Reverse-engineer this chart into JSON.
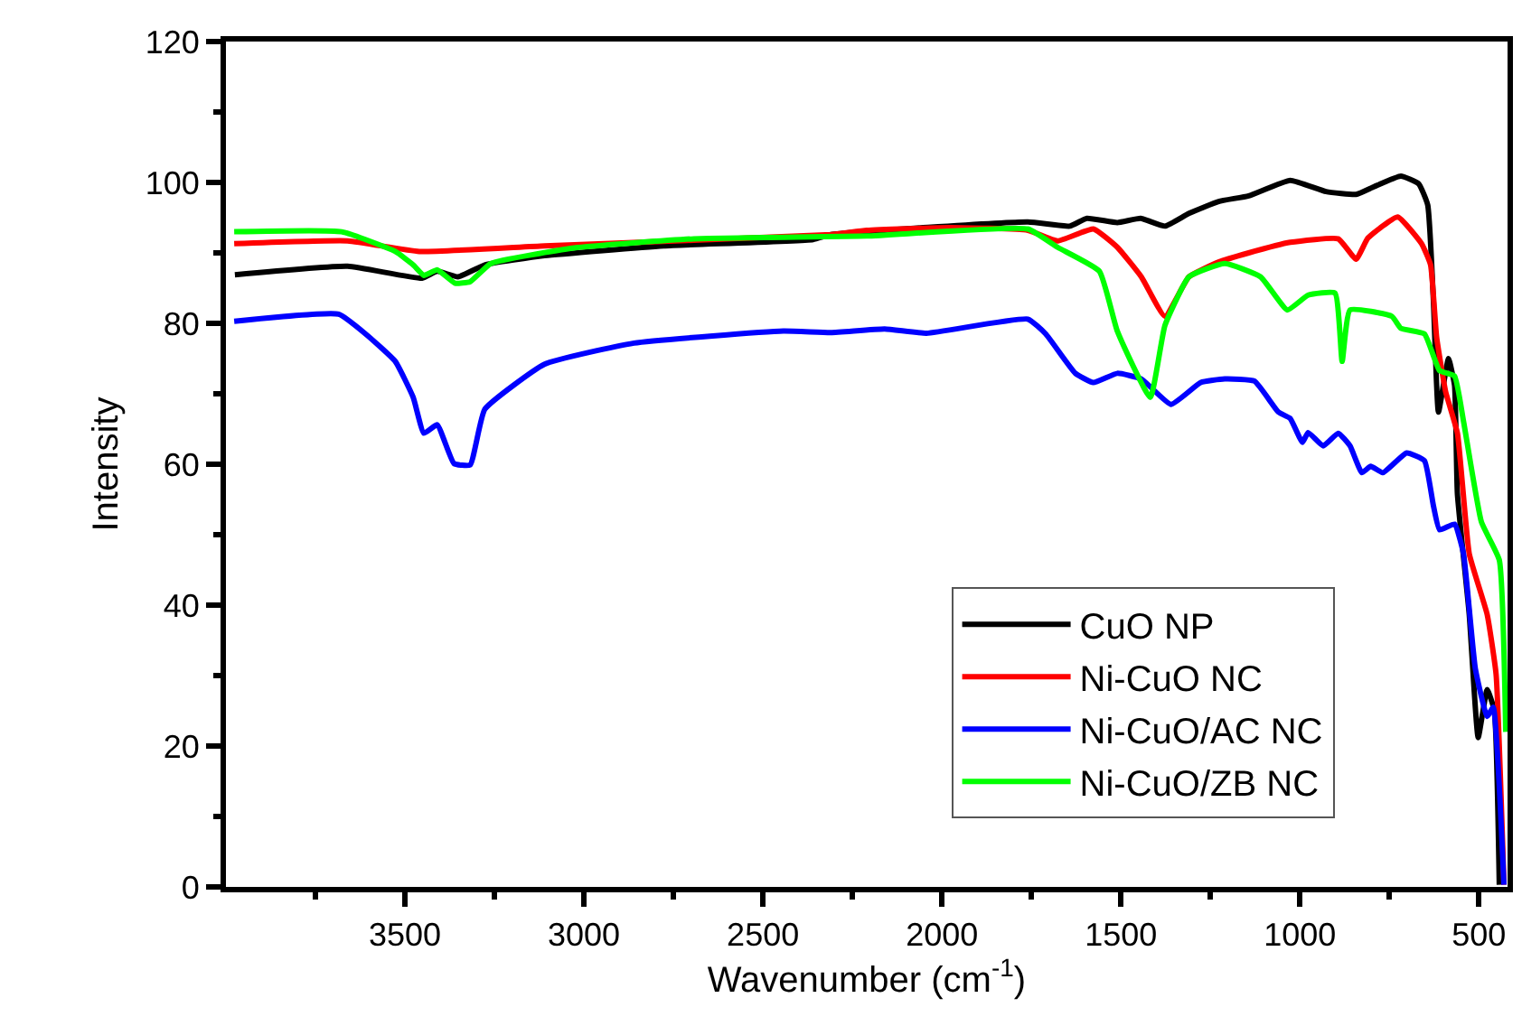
{
  "chart_data": {
    "type": "line",
    "xlabel": "Wavenumber (cm$^{-1}$)",
    "ylabel": "Intensity",
    "xlim": [
      4000,
      420
    ],
    "xticks": [
      3500,
      3000,
      2500,
      2000,
      1500,
      1000,
      500
    ],
    "ylim": [
      0,
      120
    ],
    "yticks": [
      0,
      20,
      40,
      60,
      80,
      100,
      120
    ],
    "legend": "bottom right",
    "marker": "none",
    "line_style": "solid",
    "series": [
      {
        "name": "CuO NP",
        "color": "#000000",
        "x": [
          3975,
          3660,
          3452,
          3410,
          3352,
          3277,
          3110,
          2777,
          2360,
          2310,
          1760,
          1643,
          1595,
          1510,
          1445,
          1377,
          1310,
          1227,
          1143,
          1027,
          927,
          843,
          793,
          718,
          668,
          643,
          627,
          613,
          585,
          568,
          560,
          527,
          502,
          477,
          457,
          443
        ],
        "values": [
          86.9,
          88.1,
          86.4,
          87.4,
          86.6,
          88.3,
          89.6,
          91.0,
          91.9,
          92.6,
          94.4,
          93.8,
          94.9,
          94.3,
          94.9,
          93.8,
          95.6,
          97.3,
          98.1,
          100.3,
          98.7,
          98.3,
          99.4,
          100.9,
          99.8,
          96.8,
          83.2,
          67.4,
          75.0,
          71.2,
          55.8,
          38.7,
          21.2,
          28.0,
          25.1,
          0.3
        ]
      },
      {
        "name": "Ni-CuO NC",
        "color": "#ff0000",
        "x": [
          3977,
          3660,
          3460,
          3110,
          2310,
          2210,
          1977,
          1760,
          1677,
          1577,
          1510,
          1443,
          1377,
          1310,
          1227,
          1143,
          1027,
          893,
          843,
          810,
          727,
          660,
          635,
          618,
          593,
          560,
          527,
          477,
          452,
          430
        ],
        "values": [
          91.3,
          91.7,
          90.2,
          91.0,
          92.6,
          93.2,
          93.6,
          93.2,
          91.7,
          93.4,
          90.8,
          86.6,
          81.0,
          86.6,
          88.7,
          90.0,
          91.5,
          92.0,
          89.1,
          92.1,
          95.1,
          91.3,
          88.3,
          78.0,
          70.3,
          64.4,
          47.3,
          38.7,
          30.2,
          0.3
        ]
      },
      {
        "name": "Ni-CuO/AC NC",
        "color": "#0000ff",
        "x": [
          3977,
          3685,
          3610,
          3527,
          3477,
          3447,
          3410,
          3363,
          3318,
          3277,
          3110,
          2860,
          2443,
          2310,
          2160,
          2043,
          1760,
          1710,
          1627,
          1577,
          1510,
          1443,
          1360,
          1277,
          1210,
          1127,
          1060,
          1027,
          993,
          977,
          935,
          893,
          860,
          827,
          802,
          768,
          702,
          652,
          627,
          610,
          568,
          543,
          510,
          477,
          460,
          430
        ],
        "values": [
          80.3,
          81.3,
          78.5,
          74.6,
          69.5,
          64.4,
          65.6,
          60.1,
          59.9,
          67.8,
          74.2,
          77.2,
          78.9,
          78.7,
          79.2,
          78.6,
          80.6,
          78.5,
          72.9,
          71.6,
          72.9,
          72.1,
          68.5,
          71.6,
          72.1,
          71.8,
          67.4,
          66.5,
          63.1,
          64.5,
          62.6,
          64.4,
          62.6,
          58.8,
          59.7,
          58.8,
          61.6,
          60.5,
          54.1,
          50.7,
          51.5,
          47.3,
          31.0,
          24.2,
          25.5,
          0.3
        ]
      },
      {
        "name": "Ni-CuO/ZB NC",
        "color": "#00ff00",
        "x": [
          3977,
          3677,
          3527,
          3477,
          3447,
          3410,
          3360,
          3318,
          3260,
          3027,
          2693,
          2210,
          1760,
          1677,
          1560,
          1510,
          1418,
          1377,
          1310,
          1210,
          1110,
          1035,
          977,
          902,
          882,
          860,
          743,
          718,
          652,
          610,
          568,
          543,
          493,
          443,
          425
        ],
        "values": [
          93.0,
          93.0,
          90.2,
          88.3,
          86.8,
          87.6,
          85.7,
          85.9,
          88.5,
          90.7,
          92.0,
          92.4,
          93.4,
          90.8,
          87.4,
          78.9,
          69.5,
          79.7,
          86.6,
          88.5,
          86.6,
          81.9,
          84.0,
          84.3,
          74.6,
          81.9,
          81.0,
          79.3,
          78.5,
          73.3,
          72.5,
          66.1,
          51.8,
          46.4,
          22.0
        ]
      }
    ]
  }
}
